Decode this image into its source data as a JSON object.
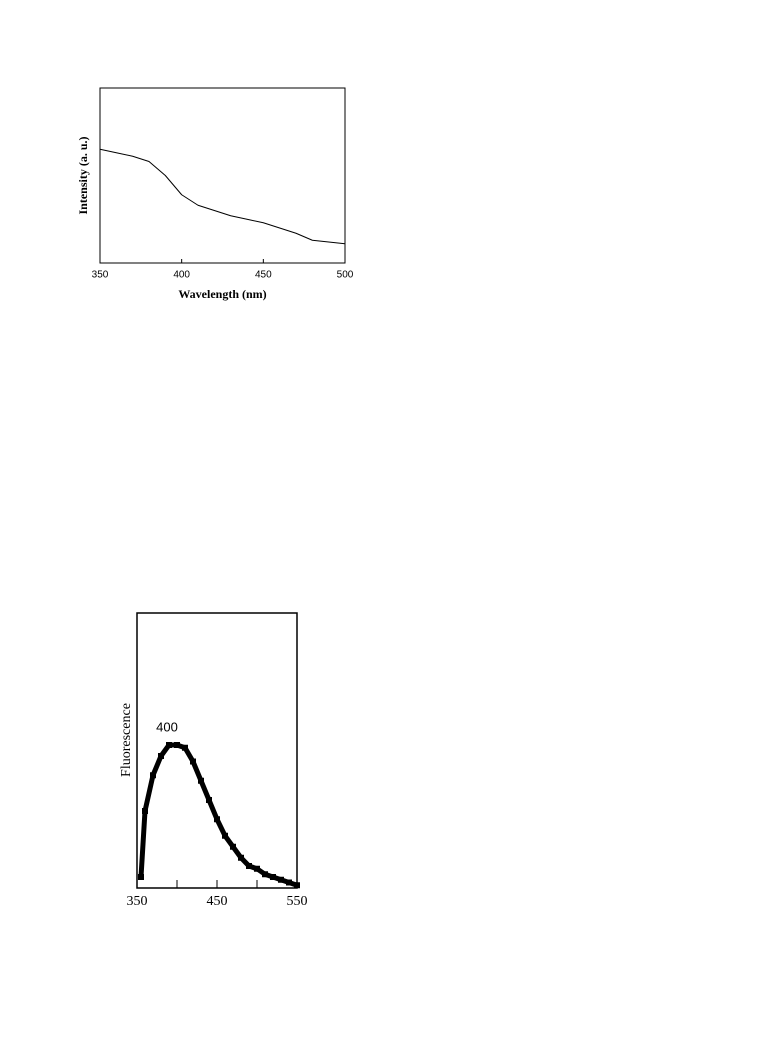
{
  "chart_data": [
    {
      "type": "line",
      "x_label": "Wavelength (nm)",
      "y_label": "Intensity (a. u.)",
      "x": [
        350,
        360,
        370,
        380,
        390,
        400,
        410,
        420,
        430,
        440,
        450,
        460,
        470,
        480,
        490,
        500
      ],
      "values": [
        0.65,
        0.63,
        0.61,
        0.58,
        0.5,
        0.39,
        0.33,
        0.3,
        0.27,
        0.25,
        0.23,
        0.2,
        0.17,
        0.13,
        0.12,
        0.11
      ],
      "color": "#000000",
      "xlim": [
        350,
        500
      ],
      "xticks": [
        350,
        400,
        450,
        500
      ],
      "ylim": [
        0,
        1
      ]
    },
    {
      "type": "line",
      "y_label": "Fluorescence",
      "annotation": "400",
      "x": [
        355,
        360,
        370,
        380,
        390,
        400,
        410,
        420,
        430,
        440,
        450,
        460,
        470,
        480,
        490,
        500,
        510,
        520,
        530,
        540,
        550
      ],
      "values": [
        0.04,
        0.28,
        0.41,
        0.48,
        0.52,
        0.52,
        0.51,
        0.46,
        0.39,
        0.32,
        0.25,
        0.19,
        0.15,
        0.11,
        0.08,
        0.07,
        0.05,
        0.04,
        0.03,
        0.02,
        0.01
      ],
      "color": "#000000",
      "xlim": [
        350,
        550
      ],
      "xticks": [
        350,
        450,
        550
      ],
      "xminorticks": [
        400,
        500
      ],
      "ylim": [
        0,
        1
      ]
    }
  ]
}
